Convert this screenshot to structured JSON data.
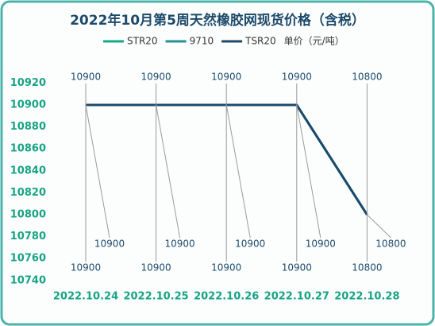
{
  "chart_data": {
    "type": "line",
    "title": "2022年10月第5周天然橡胶网现货价格（含税）",
    "unit": "单价（元/吨）",
    "categories": [
      "2022.10.24",
      "2022.10.25",
      "2022.10.26",
      "2022.10.27",
      "2022.10.28"
    ],
    "series": [
      {
        "name": "STR20",
        "color": "#17a98a",
        "values": [
          10900,
          10900,
          10900,
          10900,
          10800
        ]
      },
      {
        "name": "9710",
        "color": "#2b8f96",
        "values": [
          10900,
          10900,
          10900,
          10900,
          10800
        ]
      },
      {
        "name": "TSR20",
        "color": "#1d4a6b",
        "values": [
          10900,
          10900,
          10900,
          10900,
          10800
        ]
      }
    ],
    "ylim": [
      10740,
      10920
    ],
    "yticks": [
      10740,
      10760,
      10780,
      10800,
      10820,
      10840,
      10860,
      10880,
      10900,
      10920
    ],
    "grid": false
  }
}
